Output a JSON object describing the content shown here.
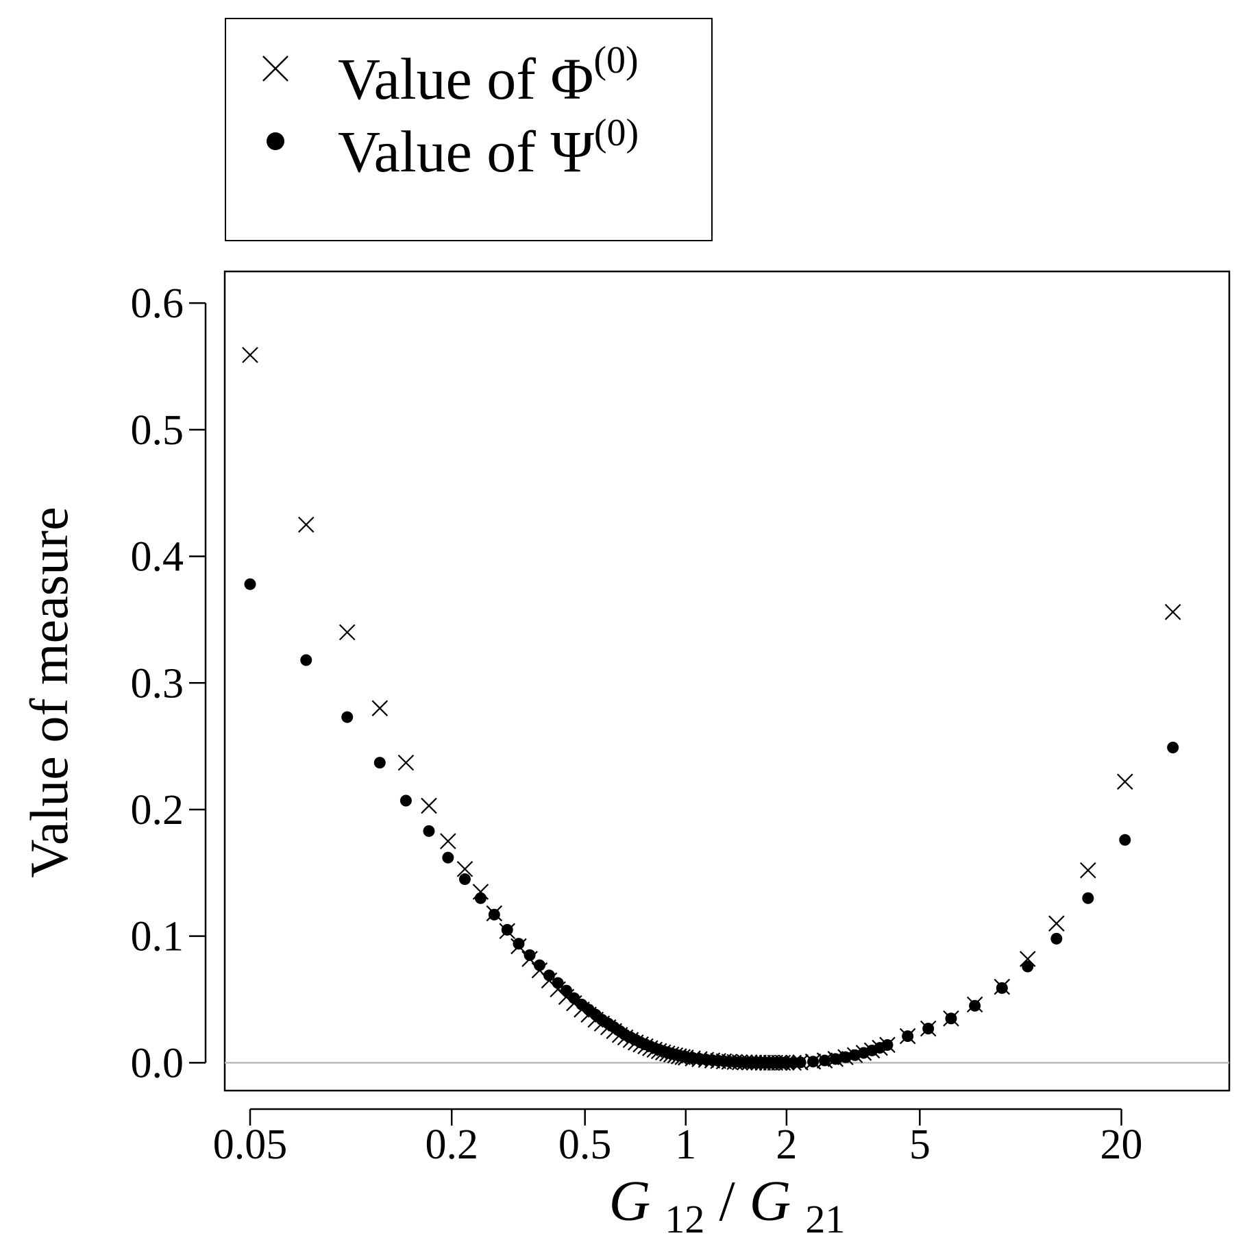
{
  "chart_data": {
    "type": "scatter",
    "title": "",
    "xlabel_parts": {
      "var1": "G",
      "sub1": "12",
      "slash": "/",
      "var2": "G",
      "sub2": "21"
    },
    "ylabel": "Value of measure",
    "xscale": "log",
    "xlim": [
      0.042,
      42
    ],
    "ylim": [
      -0.022,
      0.625
    ],
    "xticks": [
      0.05,
      0.2,
      0.5,
      1,
      2,
      5,
      20
    ],
    "xtick_labels": [
      "0.05",
      "0.2",
      "0.5",
      "1",
      "2",
      "5",
      "20"
    ],
    "yticks": [
      0.0,
      0.1,
      0.2,
      0.3,
      0.4,
      0.5,
      0.6
    ],
    "ytick_labels": [
      "0.0",
      "0.1",
      "0.2",
      "0.3",
      "0.4",
      "0.5",
      "0.6"
    ],
    "reference_line": {
      "y": 0.0,
      "color": "#bbbbbb"
    },
    "legend": {
      "placement": "top-left, above plot",
      "entries": [
        {
          "marker": "x",
          "prefix": "Value of ",
          "symbol": "Φ",
          "superscript": "(0)"
        },
        {
          "marker": "dot",
          "prefix": "Value of ",
          "symbol": "Ψ",
          "superscript": "(0)"
        }
      ]
    },
    "series": [
      {
        "name": "Value of Φ(0)",
        "marker": "x",
        "x": [
          0.05,
          0.0735,
          0.0975,
          0.122,
          0.146,
          0.171,
          0.195,
          0.219,
          0.244,
          0.268,
          0.293,
          0.317,
          0.342,
          0.366,
          0.391,
          0.415,
          0.44,
          0.464,
          0.489,
          0.513,
          0.538,
          0.562,
          0.587,
          0.611,
          0.636,
          0.66,
          0.685,
          0.709,
          0.734,
          0.758,
          0.783,
          0.807,
          0.832,
          0.856,
          0.881,
          0.905,
          0.93,
          0.954,
          0.979,
          1.0,
          1.05,
          1.1,
          1.15,
          1.2,
          1.25,
          1.3,
          1.35,
          1.4,
          1.45,
          1.5,
          1.55,
          1.6,
          1.65,
          1.7,
          1.75,
          1.8,
          1.85,
          1.9,
          1.95,
          2.0,
          2.1,
          2.2,
          2.4,
          2.6,
          2.8,
          3.0,
          3.2,
          3.4,
          3.6,
          3.8,
          4.0,
          4.6,
          5.3,
          6.2,
          7.3,
          8.8,
          10.5,
          12.8,
          15.9,
          20.5,
          28.5
        ],
        "y": [
          0.559,
          0.425,
          0.34,
          0.28,
          0.237,
          0.203,
          0.175,
          0.153,
          0.135,
          0.118,
          0.104,
          0.092,
          0.082,
          0.073,
          0.065,
          0.058,
          0.052,
          0.047,
          0.042,
          0.038,
          0.034,
          0.031,
          0.028,
          0.025,
          0.022,
          0.02,
          0.018,
          0.016,
          0.0145,
          0.013,
          0.0115,
          0.0103,
          0.0092,
          0.0082,
          0.0073,
          0.0065,
          0.0058,
          0.0051,
          0.0045,
          0.0041,
          0.0034,
          0.0028,
          0.0023,
          0.0018,
          0.0014,
          0.0011,
          0.0008,
          0.0006,
          0.0004,
          0.0003,
          0.0002,
          0.0001,
          0.0001,
          0.0,
          0.0,
          0.0,
          0.0,
          0.0,
          0.0,
          0.0,
          0.0,
          0.0003,
          0.0009,
          0.0018,
          0.003,
          0.0044,
          0.006,
          0.0078,
          0.0097,
          0.0118,
          0.0141,
          0.021,
          0.027,
          0.035,
          0.046,
          0.06,
          0.082,
          0.11,
          0.152,
          0.222,
          0.356
        ]
      },
      {
        "name": "Value of Ψ(0)",
        "marker": "dot",
        "x": [
          0.05,
          0.0735,
          0.0975,
          0.122,
          0.146,
          0.171,
          0.195,
          0.219,
          0.244,
          0.268,
          0.293,
          0.317,
          0.342,
          0.366,
          0.391,
          0.415,
          0.44,
          0.464,
          0.489,
          0.513,
          0.538,
          0.562,
          0.587,
          0.611,
          0.636,
          0.66,
          0.685,
          0.709,
          0.734,
          0.758,
          0.783,
          0.807,
          0.832,
          0.856,
          0.881,
          0.905,
          0.93,
          0.954,
          0.979,
          1.0,
          1.05,
          1.1,
          1.15,
          1.2,
          1.25,
          1.3,
          1.35,
          1.4,
          1.45,
          1.5,
          1.55,
          1.6,
          1.65,
          1.7,
          1.75,
          1.8,
          1.85,
          1.9,
          1.95,
          2.0,
          2.1,
          2.2,
          2.4,
          2.6,
          2.8,
          3.0,
          3.2,
          3.4,
          3.6,
          3.8,
          4.0,
          4.6,
          5.3,
          6.2,
          7.3,
          8.8,
          10.5,
          12.8,
          15.9,
          20.5,
          28.5
        ],
        "y": [
          0.378,
          0.318,
          0.273,
          0.237,
          0.207,
          0.183,
          0.162,
          0.145,
          0.13,
          0.117,
          0.105,
          0.094,
          0.085,
          0.077,
          0.069,
          0.063,
          0.057,
          0.051,
          0.046,
          0.042,
          0.038,
          0.034,
          0.031,
          0.028,
          0.025,
          0.022,
          0.02,
          0.018,
          0.016,
          0.0145,
          0.013,
          0.0116,
          0.0104,
          0.0093,
          0.0083,
          0.0074,
          0.0066,
          0.0058,
          0.0051,
          0.0046,
          0.0038,
          0.0031,
          0.0025,
          0.002,
          0.0016,
          0.0012,
          0.0009,
          0.0007,
          0.0005,
          0.0003,
          0.0002,
          0.0001,
          0.0001,
          0.0,
          0.0,
          0.0,
          0.0,
          0.0,
          0.0,
          0.0,
          0.0,
          0.0003,
          0.0009,
          0.0018,
          0.003,
          0.0044,
          0.006,
          0.0078,
          0.0097,
          0.0118,
          0.014,
          0.021,
          0.027,
          0.035,
          0.045,
          0.059,
          0.076,
          0.098,
          0.13,
          0.176,
          0.249
        ]
      }
    ]
  }
}
